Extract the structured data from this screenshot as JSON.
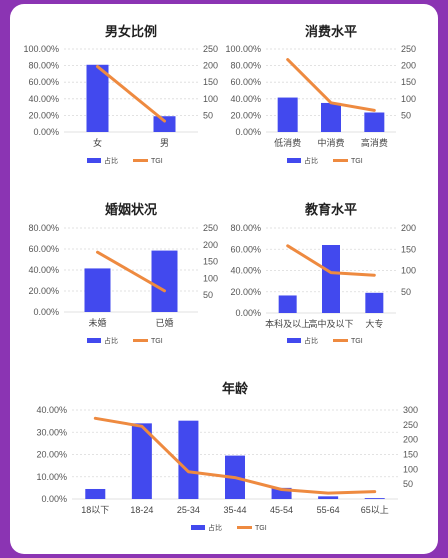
{
  "colors": {
    "bar": "#4249ee",
    "line": "#ee8a40",
    "grid": "#d9d9d9",
    "card": "#ffffff",
    "frame": "#8b34b3"
  },
  "chart_data": [
    {
      "type": "bar",
      "title": "男女比例",
      "categories": [
        "女",
        "男"
      ],
      "series": [
        {
          "name": "占比",
          "type": "bar",
          "axis": "left",
          "values": [
            0.81,
            0.19
          ]
        },
        {
          "name": "TGI",
          "type": "line",
          "axis": "right",
          "values": [
            197,
            33
          ]
        }
      ],
      "y_left": {
        "range": [
          0,
          1
        ],
        "ticks": [
          0,
          0.2,
          0.4,
          0.6,
          0.8,
          1.0
        ],
        "labels": [
          "0.00%",
          "20.00%",
          "40.00%",
          "60.00%",
          "80.00%",
          "100.00%"
        ]
      },
      "y_right": {
        "range": [
          0,
          250
        ],
        "ticks": [
          50,
          100,
          150,
          200,
          250
        ],
        "labels": [
          "50",
          "100",
          "150",
          "200",
          "250"
        ]
      },
      "grid": true,
      "legend": "bottom"
    },
    {
      "type": "bar",
      "title": "消费水平",
      "categories": [
        "低消费",
        "中消费",
        "高消费"
      ],
      "series": [
        {
          "name": "占比",
          "type": "bar",
          "axis": "left",
          "values": [
            0.415,
            0.35,
            0.235
          ]
        },
        {
          "name": "TGI",
          "type": "line",
          "axis": "right",
          "values": [
            218,
            88,
            65
          ]
        }
      ],
      "y_left": {
        "range": [
          0,
          1
        ],
        "ticks": [
          0,
          0.2,
          0.4,
          0.6,
          0.8,
          1.0
        ],
        "labels": [
          "0.00%",
          "20.00%",
          "40.00%",
          "60.00%",
          "80.00%",
          "100.00%"
        ]
      },
      "y_right": {
        "range": [
          0,
          250
        ],
        "ticks": [
          50,
          100,
          150,
          200,
          250
        ],
        "labels": [
          "50",
          "100",
          "150",
          "200",
          "250"
        ]
      },
      "grid": true,
      "legend": "bottom"
    },
    {
      "type": "bar",
      "title": "婚姻状况",
      "categories": [
        "未婚",
        "已婚"
      ],
      "series": [
        {
          "name": "占比",
          "type": "bar",
          "axis": "left",
          "values": [
            0.415,
            0.585
          ]
        },
        {
          "name": "TGI",
          "type": "line",
          "axis": "right",
          "values": [
            178,
            63
          ]
        }
      ],
      "y_left": {
        "range": [
          0,
          0.8
        ],
        "ticks": [
          0,
          0.2,
          0.4,
          0.6,
          0.8
        ],
        "labels": [
          "0.00%",
          "20.00%",
          "40.00%",
          "60.00%",
          "80.00%"
        ]
      },
      "y_right": {
        "range": [
          0,
          250
        ],
        "ticks": [
          50,
          100,
          150,
          200,
          250
        ],
        "labels": [
          "50",
          "100",
          "150",
          "200",
          "250"
        ]
      },
      "grid": true,
      "legend": "bottom"
    },
    {
      "type": "bar",
      "title": "教育水平",
      "categories": [
        "本科及以上",
        "高中及以下",
        "大专"
      ],
      "series": [
        {
          "name": "占比",
          "type": "bar",
          "axis": "left",
          "values": [
            0.165,
            0.64,
            0.19
          ]
        },
        {
          "name": "TGI",
          "type": "line",
          "axis": "right",
          "values": [
            158,
            95,
            89
          ]
        }
      ],
      "y_left": {
        "range": [
          0,
          0.8
        ],
        "ticks": [
          0,
          0.2,
          0.4,
          0.6,
          0.8
        ],
        "labels": [
          "0.00%",
          "20.00%",
          "40.00%",
          "60.00%",
          "80.00%"
        ]
      },
      "y_right": {
        "range": [
          0,
          200
        ],
        "ticks": [
          50,
          100,
          150,
          200
        ],
        "labels": [
          "50",
          "100",
          "150",
          "200"
        ]
      },
      "grid": true,
      "legend": "bottom"
    },
    {
      "type": "bar",
      "title": "年龄",
      "categories": [
        "18以下",
        "18-24",
        "25-34",
        "35-44",
        "45-54",
        "55-64",
        "65以上"
      ],
      "series": [
        {
          "name": "占比",
          "type": "bar",
          "axis": "left",
          "values": [
            0.045,
            0.34,
            0.352,
            0.195,
            0.05,
            0.012,
            0.004
          ]
        },
        {
          "name": "TGI",
          "type": "line",
          "axis": "right",
          "values": [
            272,
            245,
            92,
            72,
            32,
            20,
            25
          ]
        }
      ],
      "y_left": {
        "range": [
          0,
          0.4
        ],
        "ticks": [
          0,
          0.1,
          0.2,
          0.3,
          0.4
        ],
        "labels": [
          "0.00%",
          "10.00%",
          "20.00%",
          "30.00%",
          "40.00%"
        ]
      },
      "y_right": {
        "range": [
          0,
          300
        ],
        "ticks": [
          50,
          100,
          150,
          200,
          250,
          300
        ],
        "labels": [
          "50",
          "100",
          "150",
          "200",
          "250",
          "300"
        ]
      },
      "grid": true,
      "legend": "bottom"
    }
  ]
}
